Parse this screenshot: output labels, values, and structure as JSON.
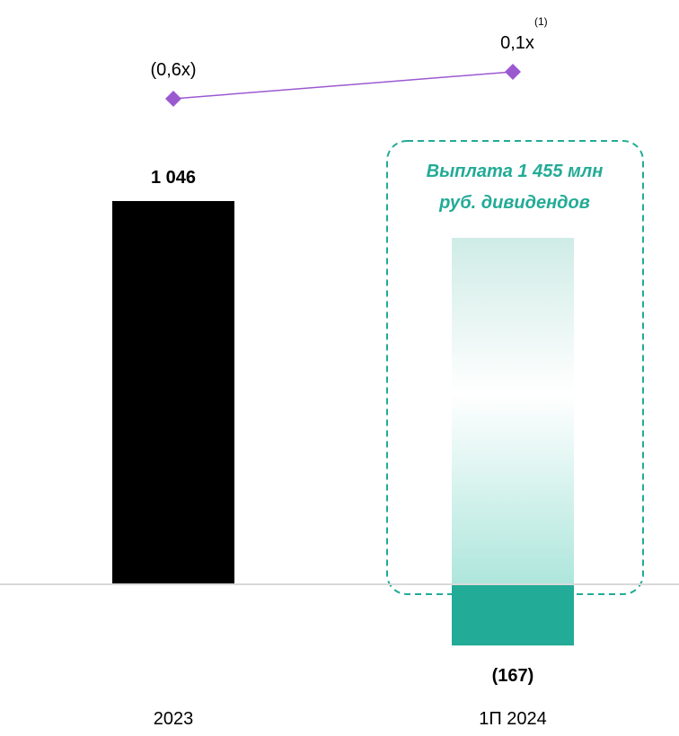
{
  "chart_data": {
    "type": "bar",
    "categories": [
      "2023",
      "1П 2024"
    ],
    "values": [
      1046,
      -167
    ],
    "value_labels": [
      "1 046",
      "(167)"
    ],
    "overlay_bar": {
      "category": "1П 2024",
      "value": 1455,
      "label": "Выплата 1 455 млн руб. дивидендов",
      "label_lines": [
        "Выплата 1 455 млн",
        "руб. дивидендов"
      ]
    },
    "secondary_series": {
      "type": "line",
      "marker": "diamond",
      "values": [
        -0.6,
        0.1
      ],
      "value_labels": [
        "(0,6x)",
        "0,1x"
      ],
      "footnote": "(1)"
    },
    "colors": {
      "bar_2023": "#000000",
      "bar_negative": "#22ab96",
      "overlay": "#bfe9e0",
      "dashed_box": "#22ab96",
      "line": "#9b59d0",
      "axis": "#d9d9d9",
      "note_text": "#22ab96"
    },
    "ylim": [
      -167,
      1455
    ],
    "grid": false,
    "legend": "none"
  }
}
